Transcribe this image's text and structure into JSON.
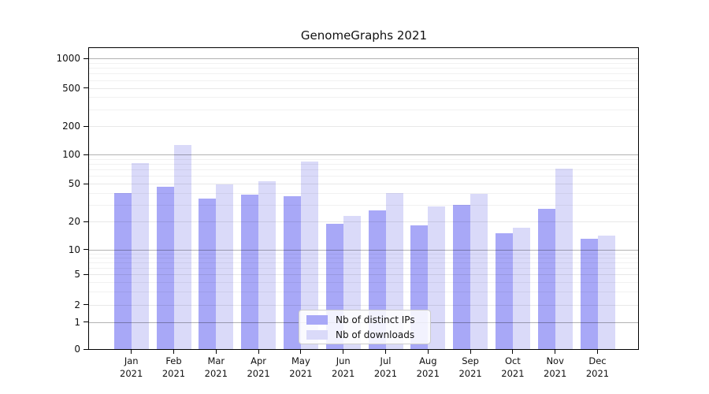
{
  "chart_data": {
    "type": "bar",
    "title": "GenomeGraphs 2021",
    "categories": [
      "Jan 2021",
      "Feb 2021",
      "Mar 2021",
      "Apr 2021",
      "May 2021",
      "Jun 2021",
      "Jul 2021",
      "Aug 2021",
      "Sep 2021",
      "Oct 2021",
      "Nov 2021",
      "Dec 2021"
    ],
    "series": [
      {
        "name": "Nb of distinct IPs",
        "color": "#a8a8f7",
        "values": [
          40,
          46,
          35,
          38,
          37,
          19,
          26,
          18,
          30,
          15,
          27,
          13
        ]
      },
      {
        "name": "Nb of downloads",
        "color": "#dadaf9",
        "values": [
          82,
          125,
          49,
          53,
          85,
          23,
          40,
          29,
          39,
          17,
          72,
          14
        ]
      }
    ],
    "yscale": "log",
    "y_ticks": [
      0,
      1,
      2,
      5,
      10,
      20,
      50,
      100,
      200,
      500,
      1000
    ],
    "ylim": [
      0,
      1400
    ],
    "xlabel": "",
    "ylabel": "",
    "grid": "on",
    "legend_position": "lower center"
  }
}
